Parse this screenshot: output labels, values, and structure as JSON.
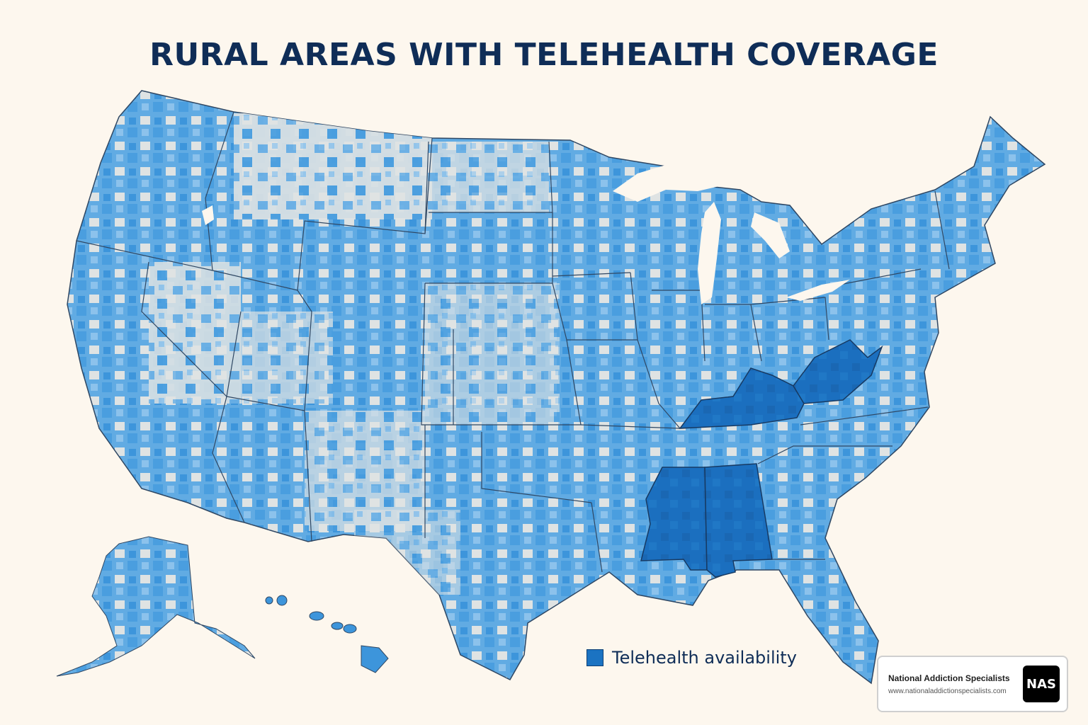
{
  "title": "RURAL AREAS WITH TELEHEALTH COVERAGE",
  "legend": {
    "label": "Telehealth availability",
    "color": "#1b73c2"
  },
  "brand": {
    "name": "National Addiction Specialists",
    "url": "www.nationaladdictionspecialists.com",
    "logo_text": "NAS"
  },
  "colors": {
    "background": "#fdf7ee",
    "title": "#0f2d57",
    "coverage_light": "#dfe3e3",
    "coverage_medium": "#61abe3",
    "coverage_high": "#3d95db",
    "highlighted_states": "#1b6fbf",
    "state_border": "#2f4763"
  },
  "highlighted_states": [
    "Kentucky",
    "West Virginia",
    "Mississippi",
    "Alabama"
  ]
}
